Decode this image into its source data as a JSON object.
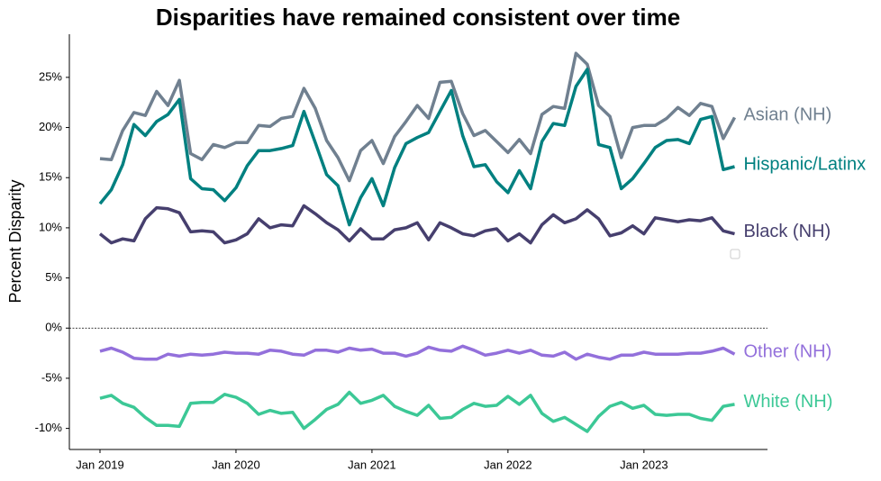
{
  "chart_data": {
    "type": "line",
    "title": "Disparities have remained consistent over time",
    "y_label": "Percent Disparity",
    "categories": [
      "Jan 2019",
      null,
      null,
      null,
      null,
      null,
      null,
      null,
      null,
      null,
      null,
      null,
      "Jan 2020",
      null,
      null,
      null,
      null,
      null,
      null,
      null,
      null,
      null,
      null,
      null,
      "Jan 2021",
      null,
      null,
      null,
      null,
      null,
      null,
      null,
      null,
      null,
      null,
      null,
      "Jan 2022",
      null,
      null,
      null,
      null,
      null,
      null,
      null,
      null,
      null,
      null,
      null,
      "Jan 2023",
      null,
      null,
      null,
      null,
      null,
      null,
      null,
      null
    ],
    "ylim": [
      -12.1,
      29.3
    ],
    "yticks": [
      {
        "value": -10,
        "label": "-10%"
      },
      {
        "value": -5,
        "label": "-5%"
      },
      {
        "value": 0,
        "label": "0%"
      },
      {
        "value": 5,
        "label": "5%"
      },
      {
        "value": 10,
        "label": "10%"
      },
      {
        "value": 15,
        "label": "15%"
      },
      {
        "value": 20,
        "label": "20%"
      },
      {
        "value": 25,
        "label": "25%"
      }
    ],
    "hline": 0,
    "series": [
      {
        "name": "Asian (NH)",
        "color": "#708090",
        "values": [
          16.9,
          16.8,
          19.7,
          21.5,
          21.2,
          23.6,
          22.2,
          24.7,
          17.4,
          16.8,
          18.3,
          18.0,
          18.5,
          18.5,
          20.2,
          20.1,
          20.9,
          21.1,
          23.9,
          21.9,
          18.7,
          17.0,
          14.7,
          17.7,
          18.7,
          16.4,
          19.1,
          20.6,
          22.2,
          20.9,
          24.5,
          24.6,
          21.4,
          19.2,
          19.7,
          18.6,
          17.5,
          18.8,
          17.4,
          21.3,
          22.1,
          21.9,
          27.4,
          26.3,
          22.2,
          21.1,
          17.0,
          20.0,
          20.2,
          20.2,
          20.9,
          22.0,
          21.2,
          22.4,
          22.1,
          18.9,
          21.0
        ]
      },
      {
        "name": "Hispanic/Latinx",
        "color": "#008080",
        "values": [
          12.4,
          13.8,
          16.3,
          20.3,
          19.2,
          20.6,
          21.3,
          22.8,
          14.9,
          13.9,
          13.8,
          12.7,
          14.0,
          16.2,
          17.7,
          17.7,
          17.9,
          18.2,
          21.6,
          18.5,
          15.3,
          14.2,
          10.3,
          13.0,
          14.9,
          12.2,
          16.0,
          18.4,
          19.0,
          19.5,
          21.6,
          23.7,
          19.2,
          16.1,
          16.3,
          14.6,
          13.5,
          15.7,
          13.9,
          18.6,
          20.4,
          20.2,
          24.1,
          25.8,
          18.3,
          18.0,
          13.9,
          14.9,
          16.4,
          18.0,
          18.7,
          18.8,
          18.4,
          20.8,
          21.1,
          15.8,
          16.1
        ]
      },
      {
        "name": "Black (NH)",
        "color": "#463f6e",
        "values": [
          9.4,
          8.5,
          8.9,
          8.7,
          10.9,
          12.0,
          11.9,
          11.5,
          9.6,
          9.7,
          9.6,
          8.5,
          8.8,
          9.4,
          10.9,
          10.0,
          10.3,
          10.2,
          12.2,
          11.4,
          10.5,
          9.8,
          8.7,
          9.9,
          8.9,
          8.9,
          9.8,
          10.0,
          10.5,
          8.8,
          10.5,
          10.0,
          9.4,
          9.2,
          9.7,
          9.9,
          8.7,
          9.4,
          8.5,
          10.3,
          11.3,
          10.5,
          10.9,
          11.8,
          10.9,
          9.2,
          9.5,
          10.2,
          9.4,
          11.0,
          10.8,
          10.6,
          10.8,
          10.7,
          11.0,
          9.7,
          9.4
        ]
      },
      {
        "name": "Other (NH)",
        "color": "#9370db",
        "values": [
          -2.3,
          -2.0,
          -2.4,
          -3.0,
          -3.1,
          -3.1,
          -2.6,
          -2.8,
          -2.6,
          -2.7,
          -2.6,
          -2.4,
          -2.5,
          -2.5,
          -2.6,
          -2.2,
          -2.3,
          -2.6,
          -2.7,
          -2.2,
          -2.2,
          -2.4,
          -2.0,
          -2.2,
          -2.1,
          -2.5,
          -2.5,
          -2.8,
          -2.5,
          -1.9,
          -2.2,
          -2.3,
          -1.8,
          -2.2,
          -2.7,
          -2.5,
          -2.2,
          -2.5,
          -2.2,
          -2.7,
          -2.8,
          -2.4,
          -3.1,
          -2.6,
          -2.9,
          -3.1,
          -2.7,
          -2.7,
          -2.4,
          -2.6,
          -2.6,
          -2.6,
          -2.5,
          -2.5,
          -2.3,
          -2.0,
          -2.6
        ]
      },
      {
        "name": "White (NH)",
        "color": "#3cc896",
        "values": [
          -7.0,
          -6.7,
          -7.5,
          -7.9,
          -8.9,
          -9.7,
          -9.7,
          -9.8,
          -7.5,
          -7.4,
          -7.4,
          -6.6,
          -6.9,
          -7.5,
          -8.6,
          -8.2,
          -8.5,
          -8.4,
          -10.0,
          -9.1,
          -8.1,
          -7.6,
          -6.4,
          -7.5,
          -7.2,
          -6.7,
          -7.8,
          -8.3,
          -8.7,
          -7.7,
          -9.0,
          -8.9,
          -8.1,
          -7.5,
          -7.8,
          -7.7,
          -6.8,
          -7.6,
          -6.7,
          -8.5,
          -9.3,
          -8.9,
          -9.6,
          -10.3,
          -8.8,
          -7.8,
          -7.4,
          -8.0,
          -7.7,
          -8.6,
          -8.7,
          -8.6,
          -8.6,
          -9.0,
          -9.2,
          -7.8,
          -7.6
        ]
      }
    ]
  }
}
